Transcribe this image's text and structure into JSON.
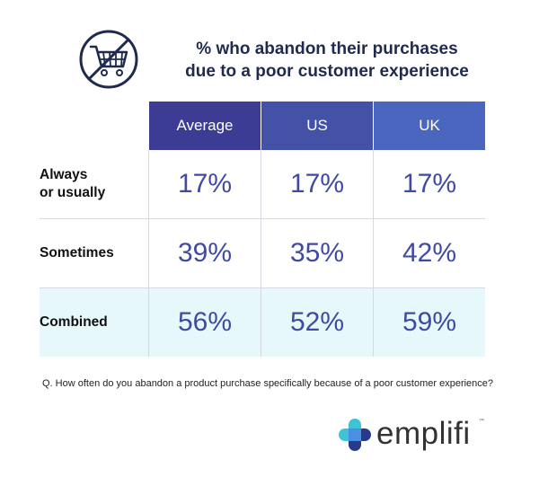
{
  "header": {
    "title_line1": "% who abandon their purchases",
    "title_line2": "due to a poor customer experience"
  },
  "chart_data": {
    "type": "table",
    "columns": [
      "Average",
      "US",
      "UK"
    ],
    "rows": [
      {
        "label_line1": "Always",
        "label_line2": "or usually",
        "values": [
          "17%",
          "17%",
          "17%"
        ]
      },
      {
        "label_line1": "Sometimes",
        "label_line2": "",
        "values": [
          "39%",
          "35%",
          "42%"
        ]
      },
      {
        "label_line1": "Combined",
        "label_line2": "",
        "values": [
          "56%",
          "52%",
          "59%"
        ]
      }
    ]
  },
  "footer": {
    "question": "Q. How often do you abandon a product purchase specifically because of a poor customer experience?"
  },
  "brand": {
    "name": "emplifi",
    "trademark": "™",
    "colors": {
      "teal": "#3fc3d6",
      "navy": "#283a8c",
      "blue": "#4b8fe0"
    }
  },
  "icons": {
    "header_icon": "no-shopping-cart-icon"
  }
}
